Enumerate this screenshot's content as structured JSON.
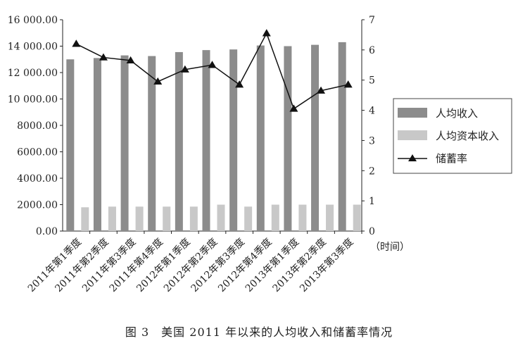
{
  "caption": "图 3　美国 2011 年以来的人均收入和储蓄率情况",
  "chart_data": {
    "type": "bar",
    "categories": [
      "2011年第1季度",
      "2011年第2季度",
      "2011年第3季度",
      "2011年第4季度",
      "2012年第1季度",
      "2012年第2季度",
      "2012年第3季度",
      "2012年第4季度",
      "2013年第1季度",
      "2013年第2季度",
      "2013年第3季度"
    ],
    "xlabel": "（时间）",
    "y_left": {
      "lim": [
        0,
        16000
      ],
      "ticks": [
        "0.00",
        "2000.00",
        "4000.00",
        "6000.00",
        "8000.00",
        "10 000.00",
        "12 000.00",
        "14 000.00",
        "16 000.00"
      ]
    },
    "y_right": {
      "lim": [
        0,
        7
      ],
      "ticks": [
        "0",
        "1",
        "2",
        "3",
        "4",
        "5",
        "6",
        "7"
      ]
    },
    "legend_position": "right",
    "series": [
      {
        "name": "人均收入",
        "type": "bar",
        "axis": "left",
        "color": "#8c8c8c",
        "values": [
          13000,
          13100,
          13300,
          13250,
          13550,
          13700,
          13750,
          14050,
          14000,
          14100,
          14300
        ]
      },
      {
        "name": "人均资本收入",
        "type": "bar",
        "axis": "left",
        "color": "#c8c8c8",
        "values": [
          1800,
          1850,
          1850,
          1850,
          1850,
          2000,
          1850,
          2000,
          2000,
          2000,
          2000
        ]
      },
      {
        "name": "储蓄率",
        "type": "line",
        "axis": "right",
        "color": "#111111",
        "marker": "triangle",
        "values": [
          6.2,
          5.75,
          5.65,
          4.95,
          5.35,
          5.5,
          4.85,
          6.55,
          4.05,
          4.65,
          4.85
        ]
      }
    ]
  }
}
